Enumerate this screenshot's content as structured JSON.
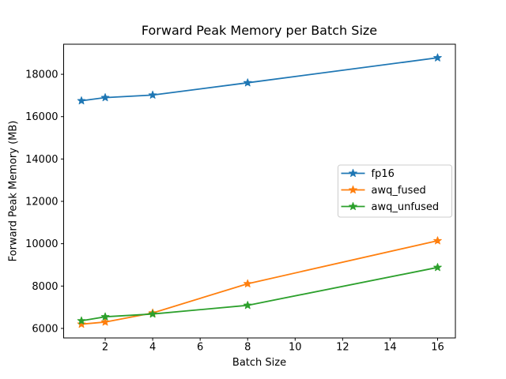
{
  "chart_data": {
    "type": "line",
    "title": "Forward Peak Memory per Batch Size",
    "xlabel": "Batch Size",
    "ylabel": "Forward Peak Memory (MB)",
    "x": [
      1,
      2,
      4,
      8,
      16
    ],
    "series": [
      {
        "name": "fp16",
        "color": "#1f77b4",
        "values": [
          16750,
          16900,
          17020,
          17600,
          18780
        ]
      },
      {
        "name": "awq_fused",
        "color": "#ff7f0e",
        "values": [
          6200,
          6300,
          6730,
          8110,
          10140
        ]
      },
      {
        "name": "awq_unfused",
        "color": "#2ca02c",
        "values": [
          6360,
          6550,
          6680,
          7090,
          8880
        ]
      }
    ],
    "marker": "star",
    "xticks": [
      2,
      4,
      6,
      8,
      10,
      12,
      14,
      16
    ],
    "yticks": [
      6000,
      8000,
      10000,
      12000,
      14000,
      16000,
      18000
    ],
    "xlim": [
      0.25,
      16.75
    ],
    "ylim": [
      5550,
      19420
    ],
    "grid": false,
    "legend": {
      "position": "center-right",
      "entries": [
        "fp16",
        "awq_fused",
        "awq_unfused"
      ]
    },
    "colors": {
      "spine": "#000000",
      "legend_border": "#cccccc",
      "background": "#ffffff"
    }
  }
}
